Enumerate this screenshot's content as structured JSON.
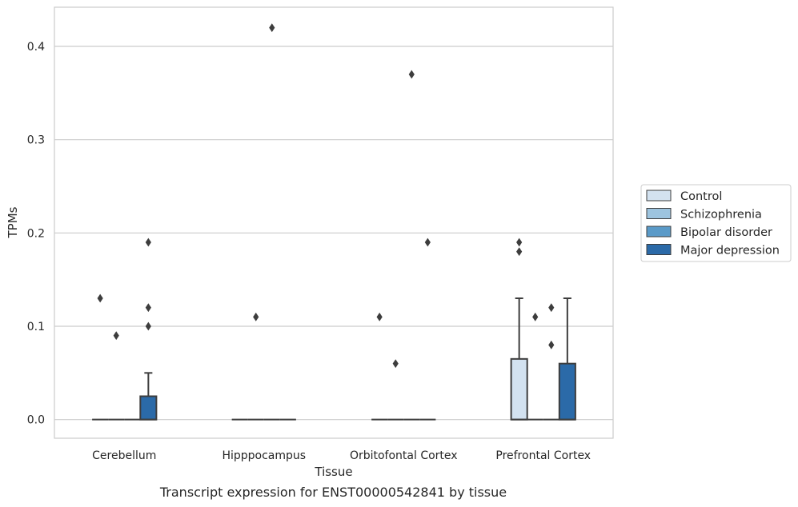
{
  "caption": "Transcript expression for ENST00000542841 by tissue",
  "chart_data": {
    "type": "box",
    "xlabel": "Tissue",
    "ylabel": "TPMs",
    "ylim": [
      -0.02,
      0.442
    ],
    "yticks": [
      0.0,
      0.1,
      0.2,
      0.3,
      0.4
    ],
    "ytick_labels": [
      "0.0",
      "0.1",
      "0.2",
      "0.3",
      "0.4"
    ],
    "grid": "horizontal",
    "legend_position": "right",
    "categories": [
      "Cerebellum",
      "Hipppocampus",
      "Orbitofontal Cortex",
      "Prefrontal Cortex"
    ],
    "series": [
      {
        "name": "Control",
        "color": "#d3e2f0",
        "boxes": [
          {
            "q1": 0,
            "median": 0,
            "q3": 0,
            "whisker_low": 0,
            "whisker_high": 0,
            "outliers": [
              0.13
            ]
          },
          {
            "q1": 0,
            "median": 0,
            "q3": 0,
            "whisker_low": 0,
            "whisker_high": 0,
            "outliers": []
          },
          {
            "q1": 0,
            "median": 0,
            "q3": 0,
            "whisker_low": 0,
            "whisker_high": 0,
            "outliers": [
              0.11
            ]
          },
          {
            "q1": 0,
            "median": 0,
            "q3": 0.065,
            "whisker_low": 0,
            "whisker_high": 0.13,
            "outliers": [
              0.18,
              0.19
            ]
          }
        ]
      },
      {
        "name": "Schizophrenia",
        "color": "#9dc4df",
        "boxes": [
          {
            "q1": 0,
            "median": 0,
            "q3": 0,
            "whisker_low": 0,
            "whisker_high": 0,
            "outliers": [
              0.09
            ]
          },
          {
            "q1": 0,
            "median": 0,
            "q3": 0,
            "whisker_low": 0,
            "whisker_high": 0,
            "outliers": [
              0.11
            ]
          },
          {
            "q1": 0,
            "median": 0,
            "q3": 0,
            "whisker_low": 0,
            "whisker_high": 0,
            "outliers": [
              0.06
            ]
          },
          {
            "q1": 0,
            "median": 0,
            "q3": 0,
            "whisker_low": 0,
            "whisker_high": 0,
            "outliers": [
              0.11
            ]
          }
        ]
      },
      {
        "name": "Bipolar disorder",
        "color": "#5a9ac8",
        "boxes": [
          {
            "q1": 0,
            "median": 0,
            "q3": 0,
            "whisker_low": 0,
            "whisker_high": 0,
            "outliers": []
          },
          {
            "q1": 0,
            "median": 0,
            "q3": 0,
            "whisker_low": 0,
            "whisker_high": 0,
            "outliers": [
              0.42
            ]
          },
          {
            "q1": 0,
            "median": 0,
            "q3": 0,
            "whisker_low": 0,
            "whisker_high": 0,
            "outliers": [
              0.37
            ]
          },
          {
            "q1": 0,
            "median": 0,
            "q3": 0,
            "whisker_low": 0,
            "whisker_high": 0,
            "outliers": [
              0.08,
              0.12
            ]
          }
        ]
      },
      {
        "name": "Major depression",
        "color": "#2b6aa8",
        "boxes": [
          {
            "q1": 0,
            "median": 0,
            "q3": 0.025,
            "whisker_low": 0,
            "whisker_high": 0.05,
            "outliers": [
              0.1,
              0.12,
              0.19
            ]
          },
          {
            "q1": 0,
            "median": 0,
            "q3": 0,
            "whisker_low": 0,
            "whisker_high": 0,
            "outliers": []
          },
          {
            "q1": 0,
            "median": 0,
            "q3": 0,
            "whisker_low": 0,
            "whisker_high": 0,
            "outliers": [
              0.19
            ]
          },
          {
            "q1": 0,
            "median": 0,
            "q3": 0.06,
            "whisker_low": 0,
            "whisker_high": 0.13,
            "outliers": []
          }
        ]
      }
    ]
  }
}
